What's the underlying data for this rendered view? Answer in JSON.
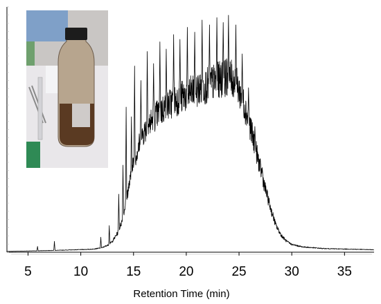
{
  "chart_data": {
    "type": "line",
    "title": "",
    "xlabel": "Retention Time (min)",
    "ylabel": "",
    "xlim": [
      3.0,
      37.8
    ],
    "ylim": [
      0,
      100
    ],
    "grid": false,
    "x_ticks": [
      "5",
      "10",
      "15",
      "20",
      "25",
      "30",
      "35"
    ],
    "x_tick_values": [
      5,
      10,
      15,
      20,
      25,
      30,
      35
    ],
    "line_color": "#000000",
    "inset_image": "sample-bottle-photo",
    "series": [
      {
        "envelope": [
          [
            3.0,
            0.3
          ],
          [
            8.0,
            0.8
          ],
          [
            11.0,
            1.2
          ],
          [
            12.0,
            1.8
          ],
          [
            12.6,
            3.0
          ],
          [
            13.0,
            4.5
          ],
          [
            13.5,
            8
          ],
          [
            14.0,
            14
          ],
          [
            14.3,
            22
          ],
          [
            14.7,
            30
          ],
          [
            15.0,
            37
          ],
          [
            15.5,
            44
          ],
          [
            16.0,
            50
          ],
          [
            17.0,
            56
          ],
          [
            18.0,
            60
          ],
          [
            19.0,
            63
          ],
          [
            20.0,
            65
          ],
          [
            21.0,
            67
          ],
          [
            22.0,
            69
          ],
          [
            23.0,
            71
          ],
          [
            23.5,
            72
          ],
          [
            24.0,
            72.5
          ],
          [
            24.5,
            71
          ],
          [
            25.0,
            67
          ],
          [
            25.5,
            61
          ],
          [
            26.0,
            53
          ],
          [
            26.5,
            44
          ],
          [
            27.0,
            35
          ],
          [
            27.5,
            26
          ],
          [
            28.0,
            18
          ],
          [
            28.5,
            11
          ],
          [
            29.0,
            7
          ],
          [
            29.5,
            4.5
          ],
          [
            30.0,
            3.2
          ],
          [
            31.0,
            2.2
          ],
          [
            33.0,
            1.5
          ],
          [
            36.0,
            1.2
          ],
          [
            37.8,
            1.0
          ]
        ],
        "peaks": [
          [
            5.9,
            2.4
          ],
          [
            7.5,
            4.5
          ],
          [
            11.9,
            6.2
          ],
          [
            12.7,
            11
          ],
          [
            13.6,
            24
          ],
          [
            14.0,
            36
          ],
          [
            14.3,
            60
          ],
          [
            14.8,
            56
          ],
          [
            15.1,
            77
          ],
          [
            15.7,
            71
          ],
          [
            16.3,
            83
          ],
          [
            16.9,
            78
          ],
          [
            17.5,
            87
          ],
          [
            18.1,
            84
          ],
          [
            18.8,
            90
          ],
          [
            19.4,
            88
          ],
          [
            20.1,
            93
          ],
          [
            20.8,
            91
          ],
          [
            21.5,
            96
          ],
          [
            22.2,
            94
          ],
          [
            22.9,
            97
          ],
          [
            23.5,
            95
          ],
          [
            24.0,
            98
          ],
          [
            24.7,
            94
          ],
          [
            25.3,
            82
          ],
          [
            25.9,
            68
          ],
          [
            26.5,
            52
          ],
          [
            27.2,
            35
          ],
          [
            28.0,
            14
          ]
        ]
      }
    ]
  }
}
